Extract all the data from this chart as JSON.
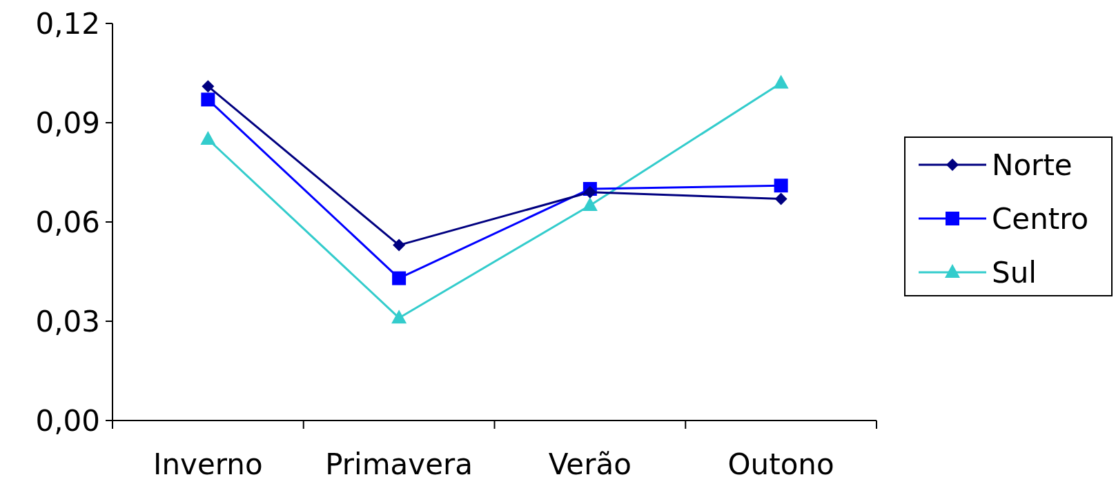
{
  "chart_data": {
    "type": "line",
    "categories": [
      "Inverno",
      "Primavera",
      "Verão",
      "Outono"
    ],
    "series": [
      {
        "name": "Norte",
        "color": "#000080",
        "marker": "diamond",
        "values": [
          0.101,
          0.053,
          0.069,
          0.067
        ]
      },
      {
        "name": "Centro",
        "color": "#0000ff",
        "marker": "square",
        "values": [
          0.097,
          0.043,
          0.07,
          0.071
        ]
      },
      {
        "name": "Sul",
        "color": "#33cccc",
        "marker": "triangle",
        "values": [
          0.085,
          0.031,
          0.065,
          0.102
        ]
      }
    ],
    "ylim": [
      0,
      0.12
    ],
    "yticks": [
      {
        "value": 0,
        "label": "0,00"
      },
      {
        "value": 0.03,
        "label": "0,03"
      },
      {
        "value": 0.06,
        "label": "0,06"
      },
      {
        "value": 0.09,
        "label": "0,09"
      },
      {
        "value": 0.12,
        "label": "0,12"
      }
    ],
    "grid": false,
    "legend": "right"
  }
}
